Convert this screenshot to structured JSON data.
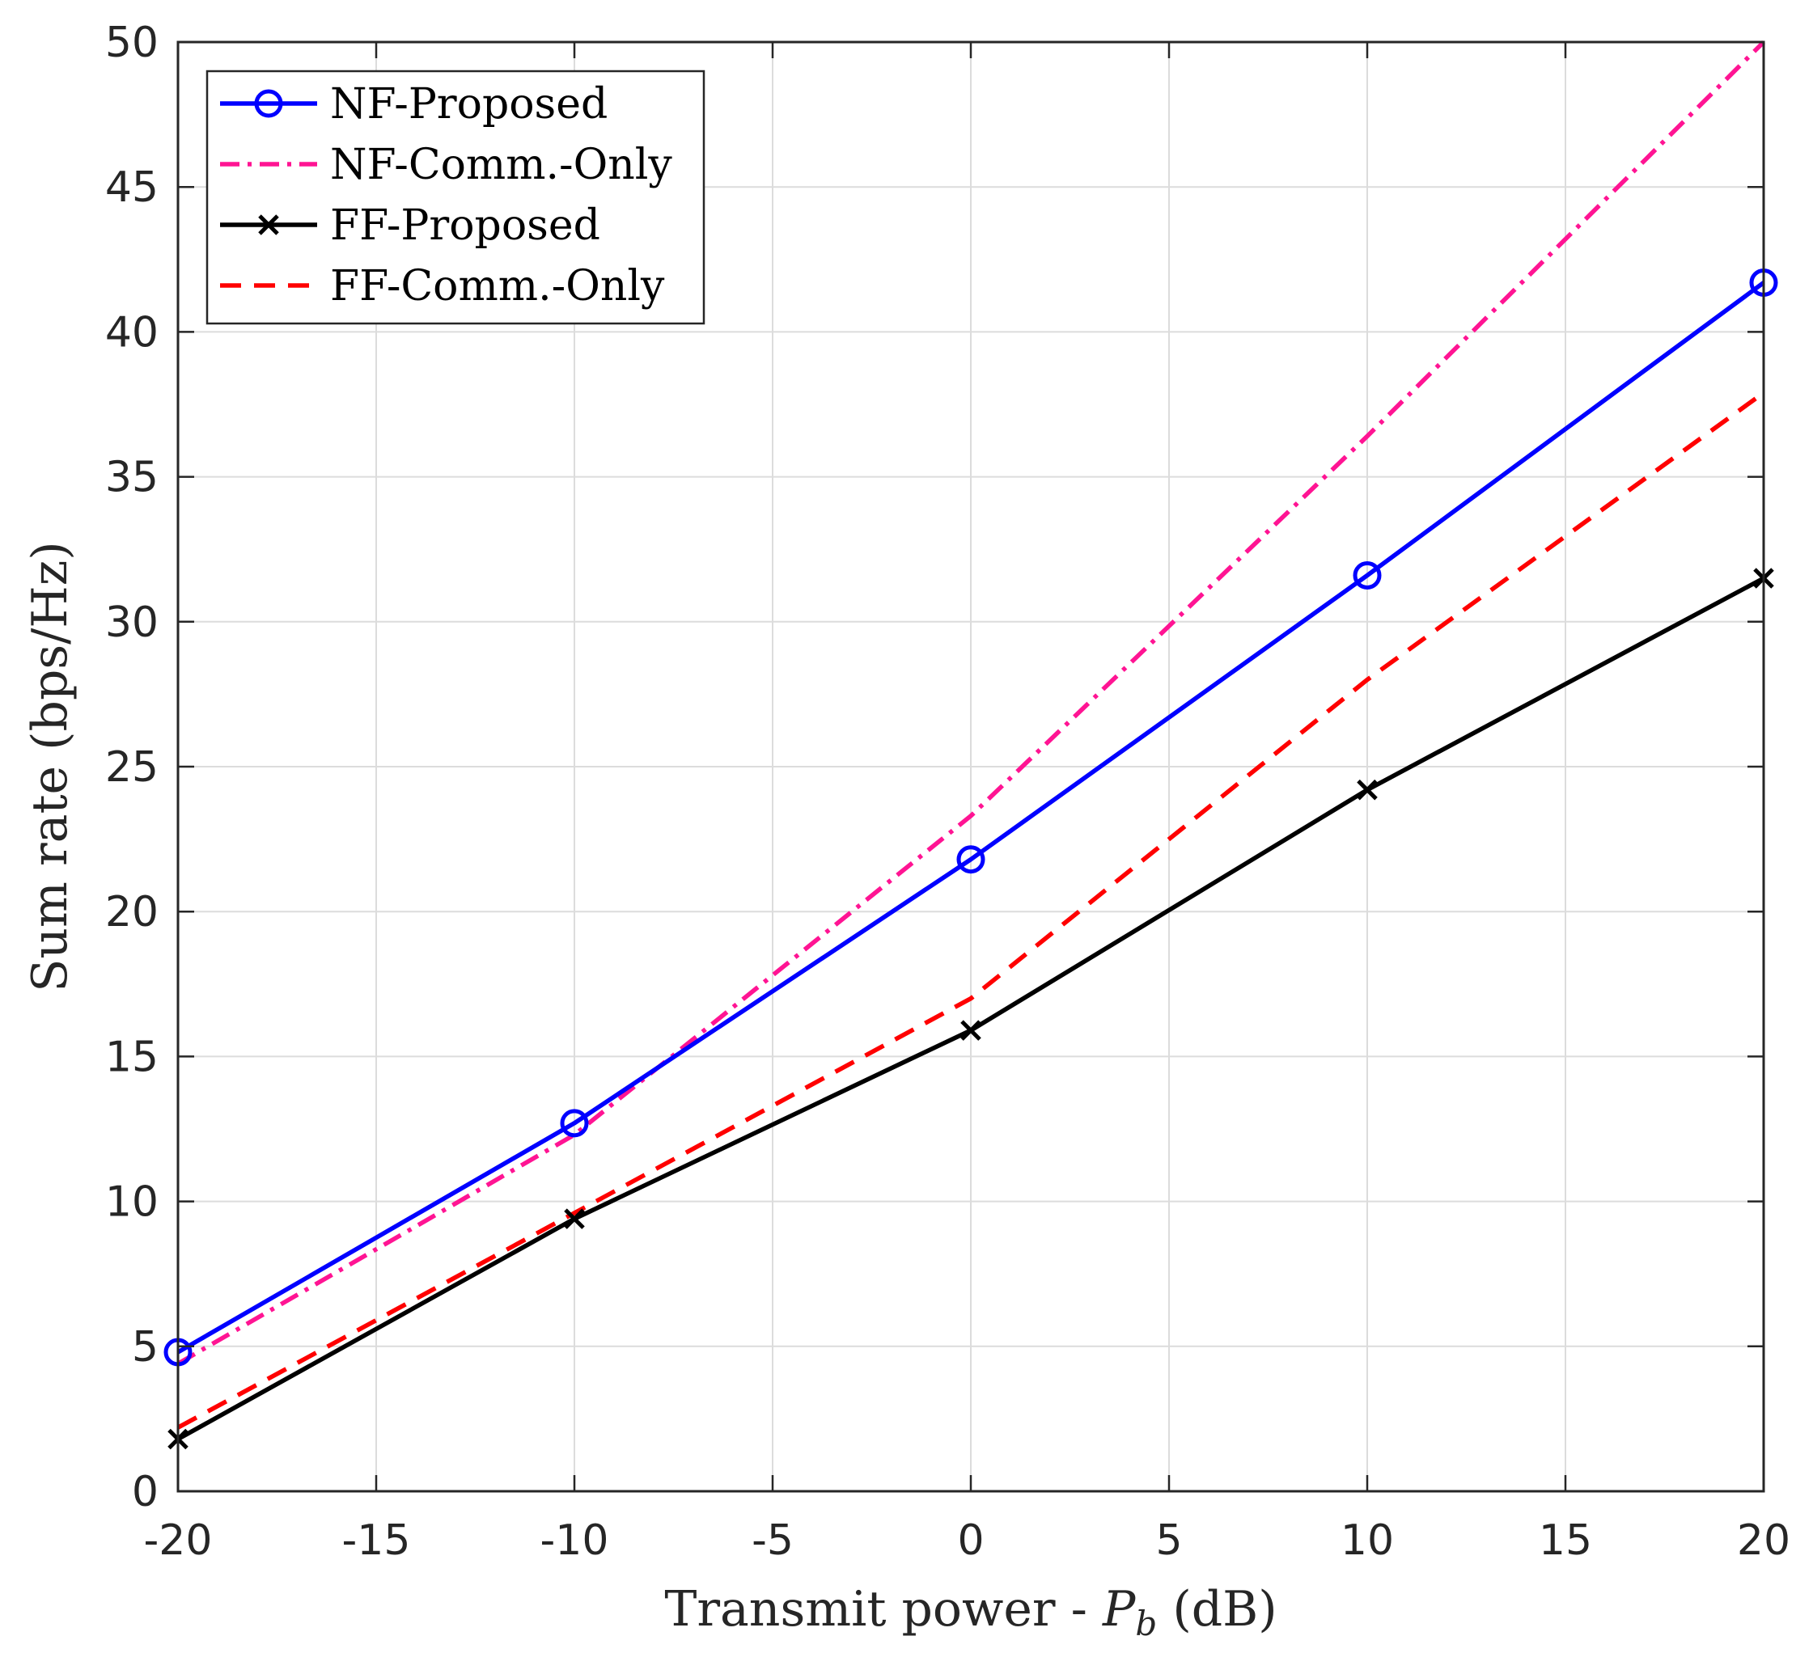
{
  "chart_data": {
    "type": "line",
    "title": "",
    "xlabel": {
      "prefix": "Transmit power - ",
      "symbol": "P",
      "subscript": "b",
      "suffix": " (dB)"
    },
    "ylabel": "Sum rate (bps/Hz)",
    "xlim": [
      -20,
      20
    ],
    "ylim": [
      0,
      50
    ],
    "xticks": [
      -20,
      -15,
      -10,
      -5,
      0,
      5,
      10,
      15,
      20
    ],
    "yticks": [
      0,
      5,
      10,
      15,
      20,
      25,
      30,
      35,
      40,
      45,
      50
    ],
    "grid": true,
    "legend_position": "top-left",
    "x": [
      -20,
      -10,
      0,
      10,
      20
    ],
    "series": [
      {
        "name": "NF-Proposed",
        "color": "#0000ff",
        "style": "solid",
        "marker": "circle",
        "values": [
          4.8,
          12.7,
          21.8,
          31.6,
          41.7
        ]
      },
      {
        "name": "NF-Comm.-Only",
        "color": "#ff1493",
        "style": "dashdot",
        "marker": "none",
        "values": [
          4.4,
          12.3,
          23.3,
          36.4,
          50.0
        ]
      },
      {
        "name": "FF-Proposed",
        "color": "#000000",
        "style": "solid",
        "marker": "x",
        "values": [
          1.8,
          9.4,
          15.9,
          24.2,
          31.5
        ]
      },
      {
        "name": "FF-Comm.-Only",
        "color": "#ff0000",
        "style": "dashed",
        "marker": "none",
        "values": [
          2.2,
          9.6,
          17.0,
          28.0,
          37.9
        ]
      }
    ]
  }
}
